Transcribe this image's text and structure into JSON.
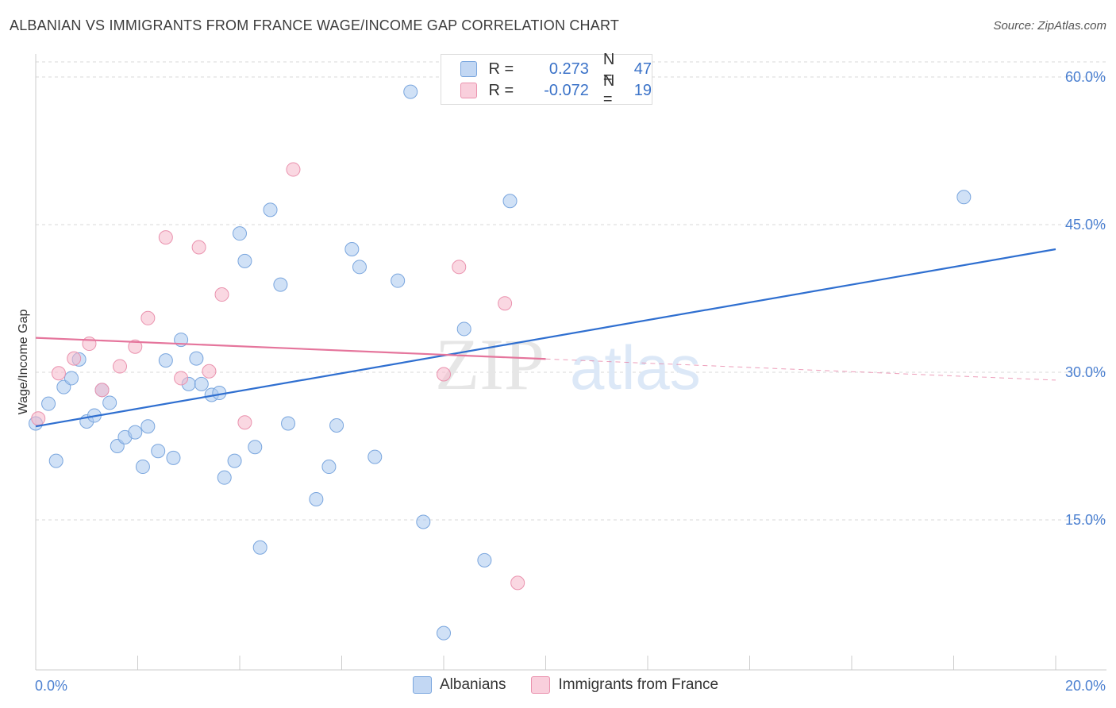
{
  "title": "ALBANIAN VS IMMIGRANTS FROM FRANCE WAGE/INCOME GAP CORRELATION CHART",
  "source": "Source: ZipAtlas.com",
  "watermark": {
    "zip": "ZIP",
    "atlas": "atlas"
  },
  "legend": {
    "rows": [
      {
        "r_label": "R =",
        "r_value": "0.273",
        "n_label": "N =",
        "n_value": "47",
        "color": "#a9c8ef"
      },
      {
        "r_label": "R =",
        "r_value": "-0.072",
        "n_label": "N =",
        "n_value": "19",
        "color": "#f6b8cb"
      }
    ]
  },
  "bottom_legend": [
    {
      "label": "Albanians",
      "color": "#a9c8ef"
    },
    {
      "label": "Immigrants from France",
      "color": "#f6b8cb"
    }
  ],
  "chart_data": {
    "type": "scatter",
    "title": "ALBANIAN VS IMMIGRANTS FROM FRANCE WAGE/INCOME GAP CORRELATION CHART",
    "xlabel": "",
    "ylabel": "Wage/Income Gap",
    "xlim": [
      0,
      20
    ],
    "ylim": [
      0,
      60
    ],
    "x_tick_labels": [
      "0.0%",
      "20.0%"
    ],
    "y_tick_labels": [
      "15.0%",
      "30.0%",
      "45.0%",
      "60.0%"
    ],
    "y_ticks": [
      15,
      30,
      45,
      60
    ],
    "grid": true,
    "series": [
      {
        "name": "Albanians",
        "color": "#a9c8ef",
        "stroke": "#7aa6de",
        "points": [
          [
            0.0,
            24.8
          ],
          [
            0.25,
            26.8
          ],
          [
            0.4,
            21.0
          ],
          [
            0.55,
            28.5
          ],
          [
            0.7,
            29.4
          ],
          [
            0.85,
            31.3
          ],
          [
            1.0,
            25.0
          ],
          [
            1.15,
            25.6
          ],
          [
            1.3,
            28.2
          ],
          [
            1.45,
            26.9
          ],
          [
            1.6,
            22.5
          ],
          [
            1.75,
            23.4
          ],
          [
            1.95,
            23.9
          ],
          [
            2.1,
            20.4
          ],
          [
            2.2,
            24.5
          ],
          [
            2.4,
            22.0
          ],
          [
            2.55,
            31.2
          ],
          [
            2.7,
            21.3
          ],
          [
            2.85,
            33.3
          ],
          [
            3.0,
            28.8
          ],
          [
            3.15,
            31.4
          ],
          [
            3.25,
            28.8
          ],
          [
            3.45,
            27.7
          ],
          [
            3.6,
            27.9
          ],
          [
            3.7,
            19.3
          ],
          [
            3.9,
            21.0
          ],
          [
            4.0,
            44.1
          ],
          [
            4.1,
            41.3
          ],
          [
            4.3,
            22.4
          ],
          [
            4.4,
            12.2
          ],
          [
            4.6,
            46.5
          ],
          [
            4.8,
            38.9
          ],
          [
            4.95,
            24.8
          ],
          [
            5.5,
            17.1
          ],
          [
            5.75,
            20.4
          ],
          [
            5.9,
            24.6
          ],
          [
            6.2,
            42.5
          ],
          [
            6.35,
            40.7
          ],
          [
            6.65,
            21.4
          ],
          [
            7.1,
            39.3
          ],
          [
            7.35,
            58.5
          ],
          [
            7.6,
            14.8
          ],
          [
            8.0,
            3.5
          ],
          [
            8.4,
            34.4
          ],
          [
            8.8,
            10.9
          ],
          [
            9.3,
            47.4
          ],
          [
            18.2,
            47.8
          ]
        ]
      },
      {
        "name": "Immigrants from France",
        "color": "#f6b8cb",
        "stroke": "#ea92ae",
        "points": [
          [
            0.05,
            25.3
          ],
          [
            0.45,
            29.9
          ],
          [
            0.75,
            31.4
          ],
          [
            1.05,
            32.9
          ],
          [
            1.3,
            28.2
          ],
          [
            1.65,
            30.6
          ],
          [
            1.95,
            32.6
          ],
          [
            2.2,
            35.5
          ],
          [
            2.55,
            43.7
          ],
          [
            2.85,
            29.4
          ],
          [
            3.2,
            42.7
          ],
          [
            3.4,
            30.1
          ],
          [
            3.65,
            37.9
          ],
          [
            4.1,
            24.9
          ],
          [
            5.05,
            50.6
          ],
          [
            8.0,
            29.8
          ],
          [
            8.3,
            40.7
          ],
          [
            9.2,
            37.0
          ],
          [
            9.45,
            8.6
          ]
        ]
      }
    ],
    "trendlines": [
      {
        "series": "Albanians",
        "color": "#2f6fd0",
        "x": [
          0,
          20
        ],
        "y": [
          24.5,
          42.5
        ],
        "dashed_from": null
      },
      {
        "series": "Immigrants from France",
        "color": "#e5759c",
        "x": [
          0,
          20
        ],
        "y": [
          33.5,
          29.2
        ],
        "dashed_from": 10
      }
    ]
  }
}
